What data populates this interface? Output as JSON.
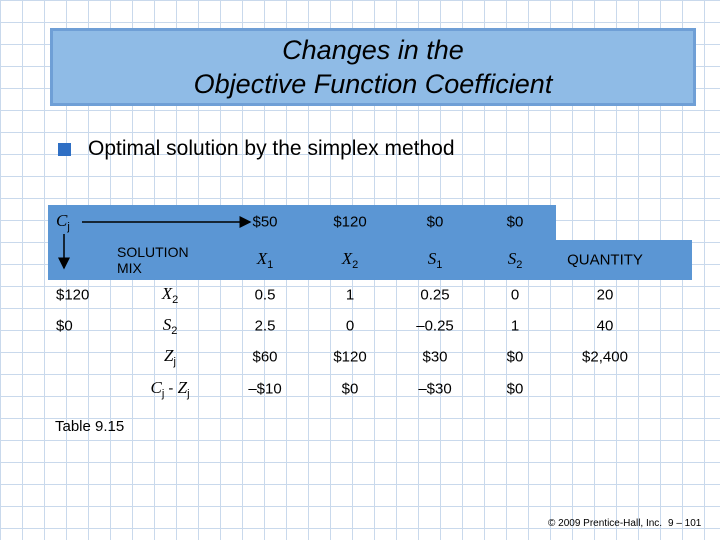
{
  "title": {
    "lines": [
      "Changes in the",
      "Objective Function Coefficient"
    ]
  },
  "bullet": "Optimal solution by the simplex method",
  "table": {
    "cj_label": [
      {
        "text": "C",
        "sub": "j"
      }
    ],
    "cj_row": [
      "$50",
      "$120",
      "$0",
      "$0"
    ],
    "header": [
      "SOLUTION MIX",
      [
        {
          "text": "X",
          "sub": "1"
        }
      ],
      [
        {
          "text": "X",
          "sub": "2"
        }
      ],
      [
        {
          "text": "S",
          "sub": "1"
        }
      ],
      [
        {
          "text": "S",
          "sub": "2"
        }
      ],
      "QUANTITY"
    ],
    "rows": [
      [
        "$120",
        [
          {
            "text": "X",
            "sub": "2"
          }
        ],
        "0.5",
        "1",
        "0.25",
        "0",
        "20"
      ],
      [
        "$0",
        [
          {
            "text": "S",
            "sub": "2"
          }
        ],
        "2.5",
        "0",
        "–0.25",
        "1",
        "40"
      ],
      [
        null,
        [
          {
            "text": "Z",
            "sub": "j"
          }
        ],
        "$60",
        "$120",
        "$30",
        "$0",
        "$2,400"
      ],
      [
        null,
        [
          {
            "text": "C",
            "sub": "j"
          },
          " - ",
          {
            "text": "Z",
            "sub": "j"
          }
        ],
        "–$10",
        "$0",
        "–$30",
        "$0",
        null
      ]
    ],
    "caption": "Table 9.15"
  },
  "footer": {
    "copyright": "© 2009 Prentice-Hall, Inc.",
    "page": "9 – 101"
  }
}
